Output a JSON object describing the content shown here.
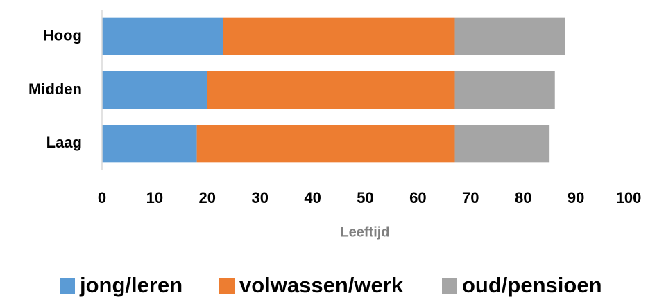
{
  "chart_data": {
    "type": "stacked_bar_horizontal",
    "categories": [
      "Hoog",
      "Midden",
      "Laag"
    ],
    "series": [
      {
        "name": "jong/leren",
        "color": "#5b9bd5",
        "values": [
          23,
          20,
          18
        ]
      },
      {
        "name": "volwassen/werk",
        "color": "#ed7d31",
        "values": [
          44,
          47,
          49
        ]
      },
      {
        "name": "oud/pensioen",
        "color": "#a5a5a5",
        "values": [
          21,
          19,
          18
        ]
      }
    ],
    "xlabel": "Leeftijd",
    "xlim": [
      0,
      100
    ],
    "xticks": [
      0,
      10,
      20,
      30,
      40,
      50,
      60,
      70,
      80,
      90,
      100
    ],
    "grid": false,
    "legend": "bottom"
  }
}
